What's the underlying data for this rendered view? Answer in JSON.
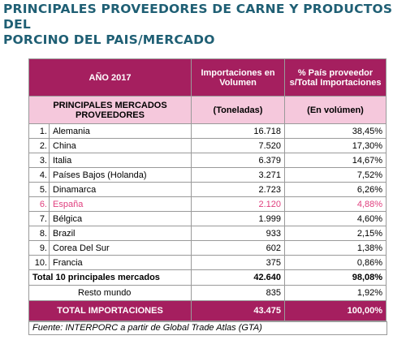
{
  "header": {
    "title_lines": [
      "PRINCIPALES PROVEEDORES DE CARNE Y PRODUCTOS DEL",
      "PORCINO DEL PAIS/MERCADO"
    ]
  },
  "table": {
    "head": [
      "AÑO 2017",
      "Importaciones en Volumen",
      "% País proveedor s/Total Importaciones"
    ],
    "subhead": [
      "PRINCIPALES MERCADOS PROVEEDORES",
      "(Toneladas)",
      "(En volúmen)"
    ],
    "rows": [
      [
        "1.",
        "Alemania",
        "16.718",
        "38,45%"
      ],
      [
        "2.",
        "China",
        "7.520",
        "17,30%"
      ],
      [
        "3.",
        "Italia",
        "6.379",
        "14,67%"
      ],
      [
        "4.",
        "Países Bajos (Holanda)",
        "3.271",
        "7,52%"
      ],
      [
        "5.",
        "Dinamarca",
        "2.723",
        "6,26%"
      ],
      [
        "6.",
        "España",
        "2.120",
        "4,88%"
      ],
      [
        "7.",
        "Bélgica",
        "1.999",
        "4,60%"
      ],
      [
        "8.",
        "Brazil",
        "933",
        "2,15%"
      ],
      [
        "9.",
        "Corea Del Sur",
        "602",
        "1,38%"
      ],
      [
        "10.",
        "Francia",
        "375",
        "0,86%"
      ]
    ],
    "highlighted_row": 5,
    "total_top10": [
      "Total 10 principales mercados",
      "42.640",
      "98,08%"
    ],
    "rest": [
      "Resto mundo",
      "835",
      "1,92%"
    ],
    "total": [
      "TOTAL IMPORTACIONES",
      "43.475",
      "100,00%"
    ],
    "source": "Fuente: INTERPORC a partir de Global Trade Atlas (GTA)"
  }
}
